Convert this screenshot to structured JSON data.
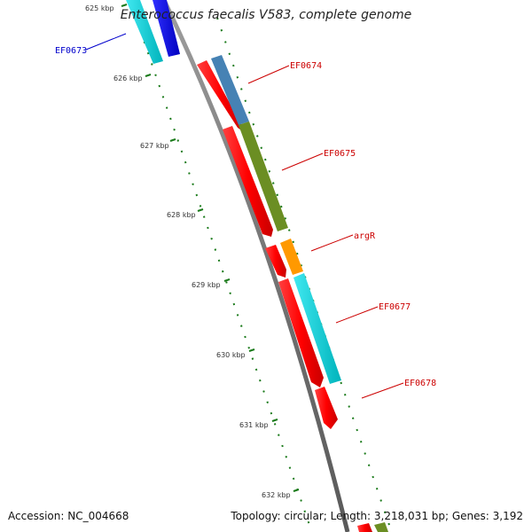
{
  "title": "Enterococcus faecalis V583, complete genome",
  "footer": {
    "accession": "Accession: NC_004668",
    "topology": "Topology: circular; Length: 3,218,031 bp; Genes: 3,192"
  },
  "scale_labels": [
    "625 kbp",
    "626 kbp",
    "627 kbp",
    "628 kbp",
    "629 kbp",
    "630 kbp",
    "631 kbp",
    "632 kbp"
  ],
  "gene_labels": [
    {
      "text": "EF0673",
      "color": "#0000cc"
    },
    {
      "text": "EF0674",
      "color": "#cc0000"
    },
    {
      "text": "EF0675",
      "color": "#cc0000"
    },
    {
      "text": "argR",
      "color": "#cc0000"
    },
    {
      "text": "EF0677",
      "color": "#cc0000"
    },
    {
      "text": "EF0678",
      "color": "#cc0000"
    }
  ],
  "colors": {
    "forward_cds": "#ff0000",
    "backbone": "#808080",
    "gc_dots": "#1a7a1a",
    "cyan_feature": "#00d0d8",
    "blue_feature": "#0000ee",
    "steelblue_feature": "#4682b4",
    "olive_feature": "#6b8e23",
    "orange_feature": "#ff9900"
  }
}
